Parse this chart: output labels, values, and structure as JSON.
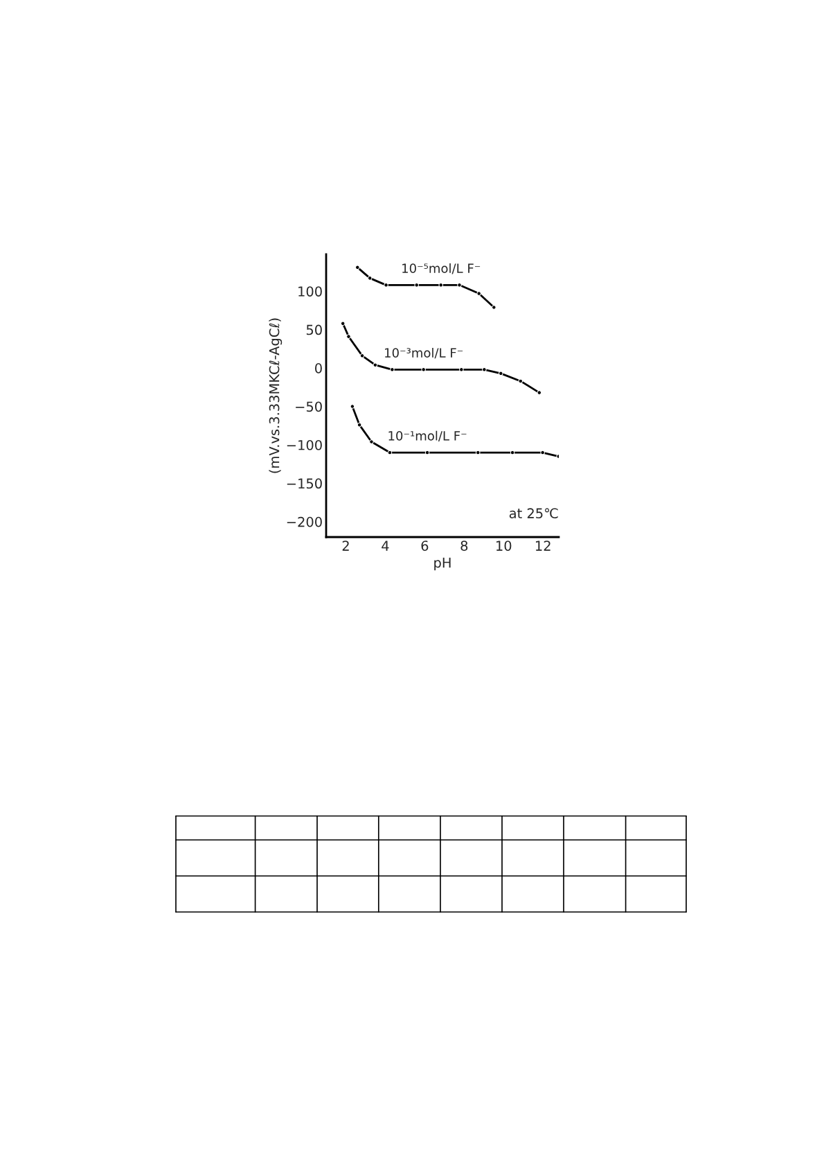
{
  "chart_data": {
    "type": "line",
    "xlabel": "pH",
    "ylabel": "(mV.vs.3.33MKCℓ-AgCℓ)",
    "xlim": [
      1,
      12.8
    ],
    "ylim": [
      -220,
      148
    ],
    "xticks": [
      2,
      4,
      6,
      8,
      10,
      12
    ],
    "yticks": [
      {
        "value": -200,
        "label": "−200"
      },
      {
        "value": -150,
        "label": "−150"
      },
      {
        "value": -100,
        "label": "−100"
      },
      {
        "value": -50,
        "label": "−50"
      },
      0,
      50,
      100
    ],
    "marker": "circle",
    "line_style": "solid",
    "grid": false,
    "legend": false,
    "annotations": [
      "at 25℃"
    ],
    "series": [
      {
        "name": "10⁻⁵mol/L F⁻",
        "color": "#000000",
        "x": [
          2.59,
          3.22,
          4.04,
          5.59,
          6.82,
          7.76,
          8.75,
          9.51
        ],
        "values": [
          131,
          117,
          108,
          108,
          108,
          108,
          97,
          79
        ]
      },
      {
        "name": "10⁻³mol/L F⁻",
        "color": "#000000",
        "x": [
          1.85,
          2.14,
          2.83,
          3.49,
          4.35,
          5.94,
          7.86,
          9.02,
          9.86,
          10.86,
          11.81
        ],
        "values": [
          58,
          41,
          16,
          4,
          -2,
          -2,
          -2,
          -2,
          -7,
          -17,
          -32
        ]
      },
      {
        "name": "10⁻¹mol/L F⁻",
        "color": "#000000",
        "x": [
          2.33,
          2.69,
          3.3,
          4.23,
          6.13,
          8.7,
          10.45,
          11.98,
          12.79
        ],
        "values": [
          -50,
          -74,
          -96,
          -110,
          -110,
          -110,
          -110,
          -110,
          -115
        ]
      }
    ]
  }
}
